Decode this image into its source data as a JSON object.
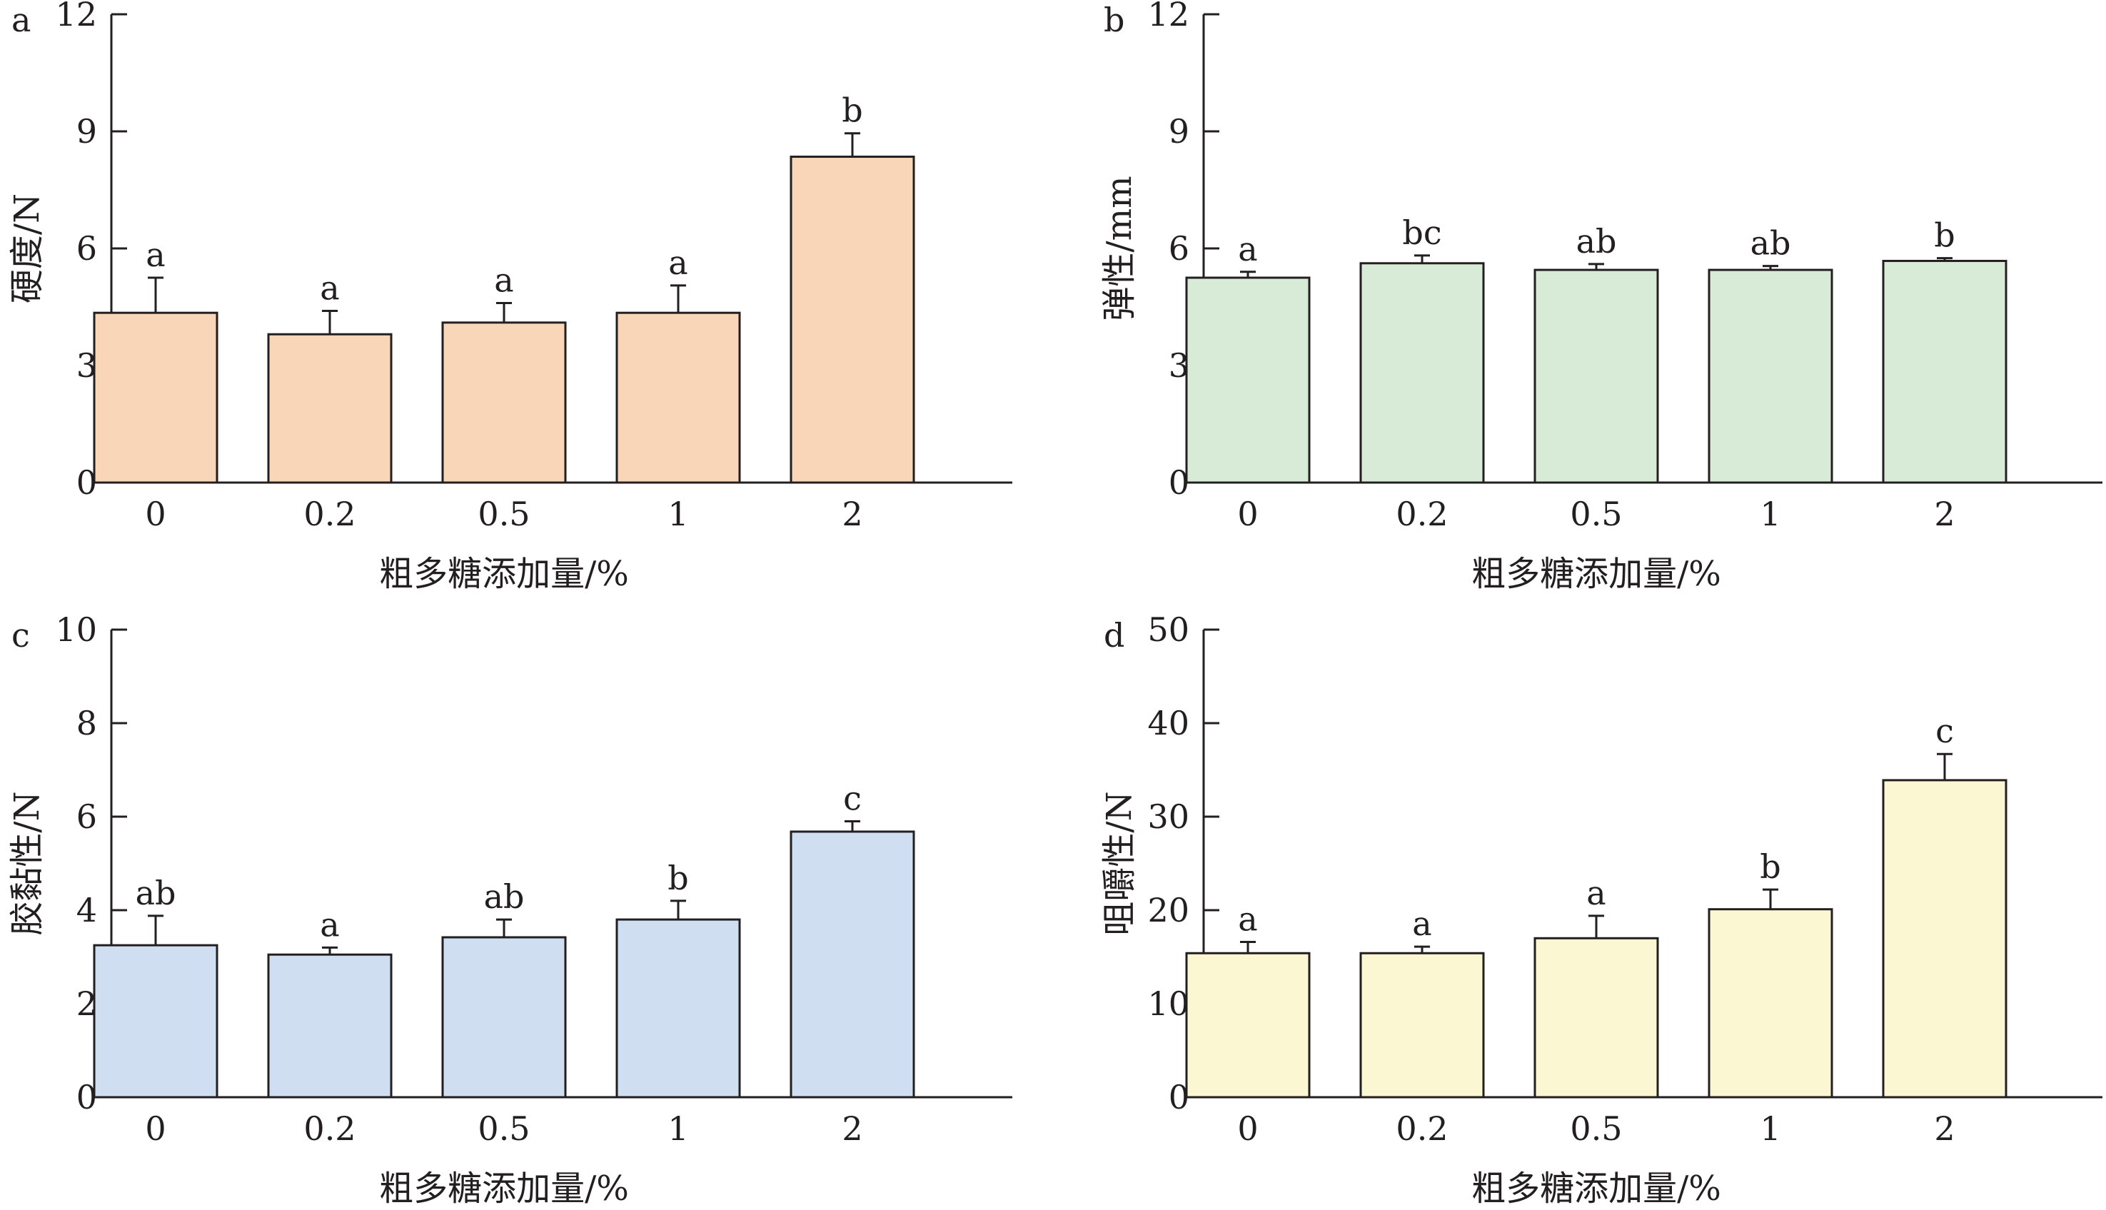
{
  "chart_data": [
    {
      "type": "bar",
      "panel_label": "a",
      "ylabel": "硬度/N",
      "xlabel": "粗多糖添加量/%",
      "categories": [
        "0",
        "0.2",
        "0.5",
        "1",
        "2"
      ],
      "values": [
        4.35,
        3.8,
        4.1,
        4.35,
        8.35
      ],
      "errors": [
        0.9,
        0.6,
        0.5,
        0.7,
        0.6
      ],
      "significance": [
        "a",
        "a",
        "a",
        "a",
        "b"
      ],
      "ylim": [
        0,
        12
      ],
      "yticks": [
        "0",
        "3",
        "6",
        "9",
        "12"
      ],
      "color": "#f9d6b8"
    },
    {
      "type": "bar",
      "panel_label": "b",
      "ylabel": "弹性/mm",
      "xlabel": "粗多糖添加量/%",
      "categories": [
        "0",
        "0.2",
        "0.5",
        "1",
        "2"
      ],
      "values": [
        5.25,
        5.62,
        5.45,
        5.45,
        5.68
      ],
      "errors": [
        0.15,
        0.2,
        0.15,
        0.1,
        0.07
      ],
      "significance": [
        "a",
        "bc",
        "ab",
        "ab",
        "b"
      ],
      "ylim": [
        0,
        12
      ],
      "yticks": [
        "0",
        "3",
        "6",
        "9",
        "12"
      ],
      "color": "#d8ebd7"
    },
    {
      "type": "bar",
      "panel_label": "c",
      "ylabel": "胶黏性/N",
      "xlabel": "粗多糖添加量/%",
      "categories": [
        "0",
        "0.2",
        "0.5",
        "1",
        "2"
      ],
      "values": [
        3.25,
        3.05,
        3.42,
        3.8,
        5.68
      ],
      "errors": [
        0.63,
        0.15,
        0.38,
        0.4,
        0.22
      ],
      "significance": [
        "ab",
        "a",
        "ab",
        "b",
        "c"
      ],
      "ylim": [
        0,
        10
      ],
      "yticks": [
        "0",
        "2",
        "4",
        "6",
        "8",
        "10"
      ],
      "color": "#cfdff1"
    },
    {
      "type": "bar",
      "panel_label": "d",
      "ylabel": "咀嚼性/N",
      "xlabel": "粗多糖添加量/%",
      "categories": [
        "0",
        "0.2",
        "0.5",
        "1",
        "2"
      ],
      "values": [
        15.4,
        15.4,
        17.0,
        20.1,
        33.9
      ],
      "errors": [
        1.2,
        0.7,
        2.4,
        2.1,
        2.8
      ],
      "significance": [
        "a",
        "a",
        "a",
        "b",
        "c"
      ],
      "ylim": [
        0,
        50
      ],
      "yticks": [
        "0",
        "10",
        "20",
        "30",
        "40",
        "50"
      ],
      "color": "#fbf7d2"
    }
  ]
}
